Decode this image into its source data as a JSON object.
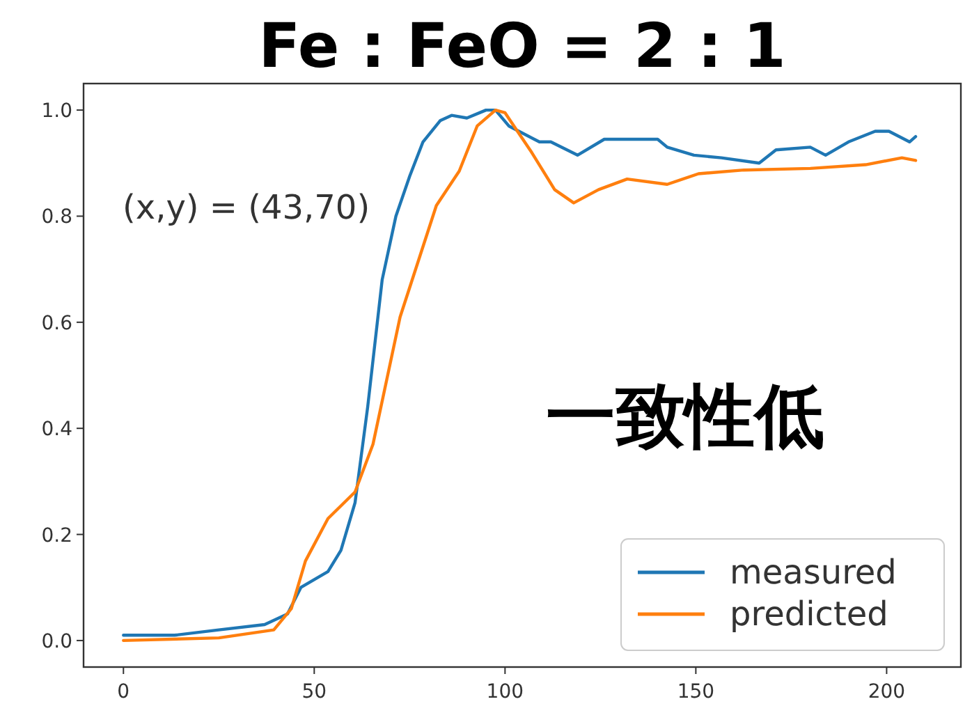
{
  "chart_data": {
    "type": "line",
    "title": "Fe : FeO = 2 : 1",
    "xlim": [
      -10.45,
      219.45
    ],
    "ylim": [
      -0.05,
      1.05
    ],
    "xticks": [
      0,
      50,
      100,
      150,
      200
    ],
    "yticks": [
      {
        "value": 0,
        "label": "0.0"
      },
      {
        "value": 0.2,
        "label": "0.2"
      },
      {
        "value": 0.4,
        "label": "0.4"
      },
      {
        "value": 0.6,
        "label": "0.6"
      },
      {
        "value": 0.8,
        "label": "0.8"
      },
      {
        "value": 1.0,
        "label": "1.0"
      }
    ],
    "grid": false,
    "legend": "bottom right",
    "annotations": [
      "(x,y) = (43,70)",
      "一致性低"
    ],
    "series": [
      {
        "name": "measured",
        "color": "#1f77b4",
        "x": [
          0,
          13.4,
          25,
          37,
          43,
          46.5,
          53.6,
          57,
          60.7,
          64,
          67.8,
          71.4,
          75,
          78.5,
          83,
          86,
          90,
          95,
          97.5,
          101,
          109,
          112,
          119,
          126,
          135,
          140,
          142.5,
          149.5,
          156.7,
          166.6,
          171,
          180,
          184,
          190,
          197,
          200.6,
          206,
          207.6
        ],
        "values": [
          0.01,
          0.01,
          0.02,
          0.03,
          0.05,
          0.1,
          0.13,
          0.17,
          0.26,
          0.44,
          0.68,
          0.8,
          0.875,
          0.94,
          0.98,
          0.99,
          0.985,
          1.0,
          1.0,
          0.97,
          0.94,
          0.94,
          0.915,
          0.945,
          0.945,
          0.945,
          0.93,
          0.915,
          0.91,
          0.9,
          0.925,
          0.93,
          0.915,
          0.94,
          0.96,
          0.96,
          0.94,
          0.95
        ]
      },
      {
        "name": "predicted",
        "color": "#ff7f0e",
        "x": [
          0,
          25,
          39.4,
          44,
          47.7,
          53.6,
          60.7,
          65.4,
          72.5,
          82,
          88,
          92.7,
          97.5,
          100,
          107,
          113,
          118,
          124.5,
          132,
          142.5,
          150.7,
          162.6,
          180,
          194.5,
          204,
          207.6
        ],
        "values": [
          0.0,
          0.005,
          0.02,
          0.06,
          0.15,
          0.23,
          0.28,
          0.37,
          0.61,
          0.82,
          0.885,
          0.97,
          1.0,
          0.995,
          0.92,
          0.85,
          0.825,
          0.85,
          0.87,
          0.86,
          0.88,
          0.887,
          0.89,
          0.897,
          0.91,
          0.905
        ]
      }
    ]
  }
}
